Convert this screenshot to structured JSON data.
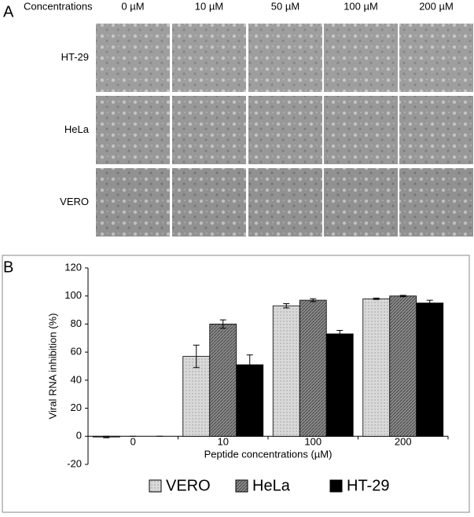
{
  "panel_a": {
    "label": "A",
    "header": "Concentrations",
    "concentrations": [
      "0 µM",
      "10 µM",
      "50 µM",
      "100 µM",
      "200 µM"
    ],
    "cell_lines": [
      "HT-29",
      "HeLa",
      "VERO"
    ]
  },
  "chart_data": {
    "type": "bar",
    "panel_label": "B",
    "y_label": "Viral RNA inhibition (%)",
    "x_label": "Peptide concentrations (µM)",
    "categories": [
      "0",
      "10",
      "100",
      "200"
    ],
    "series": [
      {
        "name": "VERO",
        "color": "#d9d9d9",
        "values": [
          -0.5,
          57,
          93,
          98
        ],
        "errors": [
          0.5,
          8,
          1.5,
          0.5
        ]
      },
      {
        "name": "HeLa",
        "color": "#8c8c8c",
        "values": [
          0,
          80,
          97,
          100
        ],
        "errors": [
          0,
          3,
          1,
          0.5
        ]
      },
      {
        "name": "HT-29",
        "color": "#000000",
        "values": [
          0,
          51,
          73,
          95
        ],
        "errors": [
          0,
          7,
          2.5,
          2
        ]
      }
    ],
    "ylim": [
      -20,
      120
    ],
    "yticks": [
      -20,
      0,
      20,
      40,
      60,
      80,
      100,
      120
    ],
    "legend": "bottom"
  }
}
